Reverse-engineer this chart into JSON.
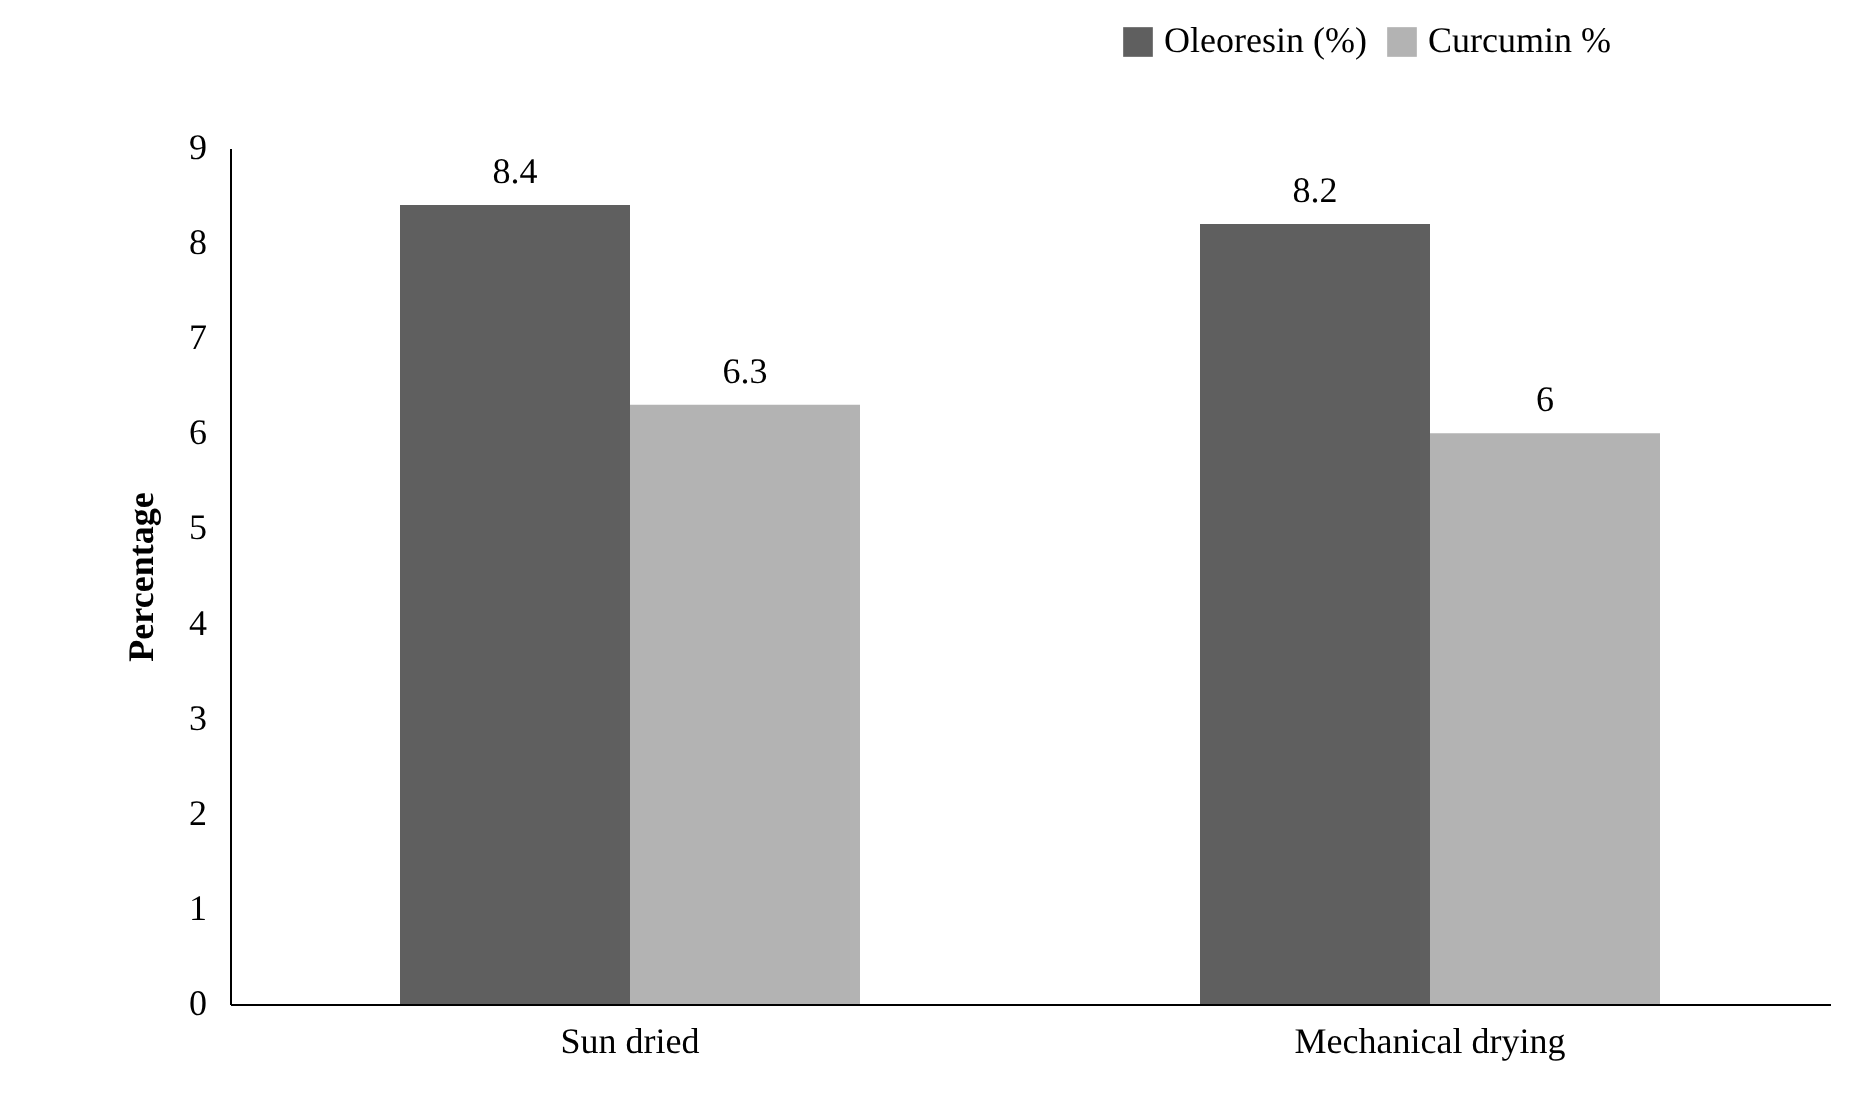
{
  "chart_data": {
    "type": "bar",
    "ylabel": "Percentage",
    "categories": [
      "Sun dried",
      "Mechanical drying"
    ],
    "series": [
      {
        "name": "Oleoresin (%)",
        "color": "#5f5f5f",
        "values": [
          8.4,
          8.2
        ]
      },
      {
        "name": "Curcumin %",
        "color": "#b3b3b3",
        "values": [
          6.3,
          6
        ]
      }
    ],
    "ylim": [
      0,
      9
    ],
    "yticks": [
      0,
      1,
      2,
      3,
      4,
      5,
      6,
      7,
      8,
      9
    ],
    "grid": false,
    "legend": "top right",
    "data_labels": true
  }
}
